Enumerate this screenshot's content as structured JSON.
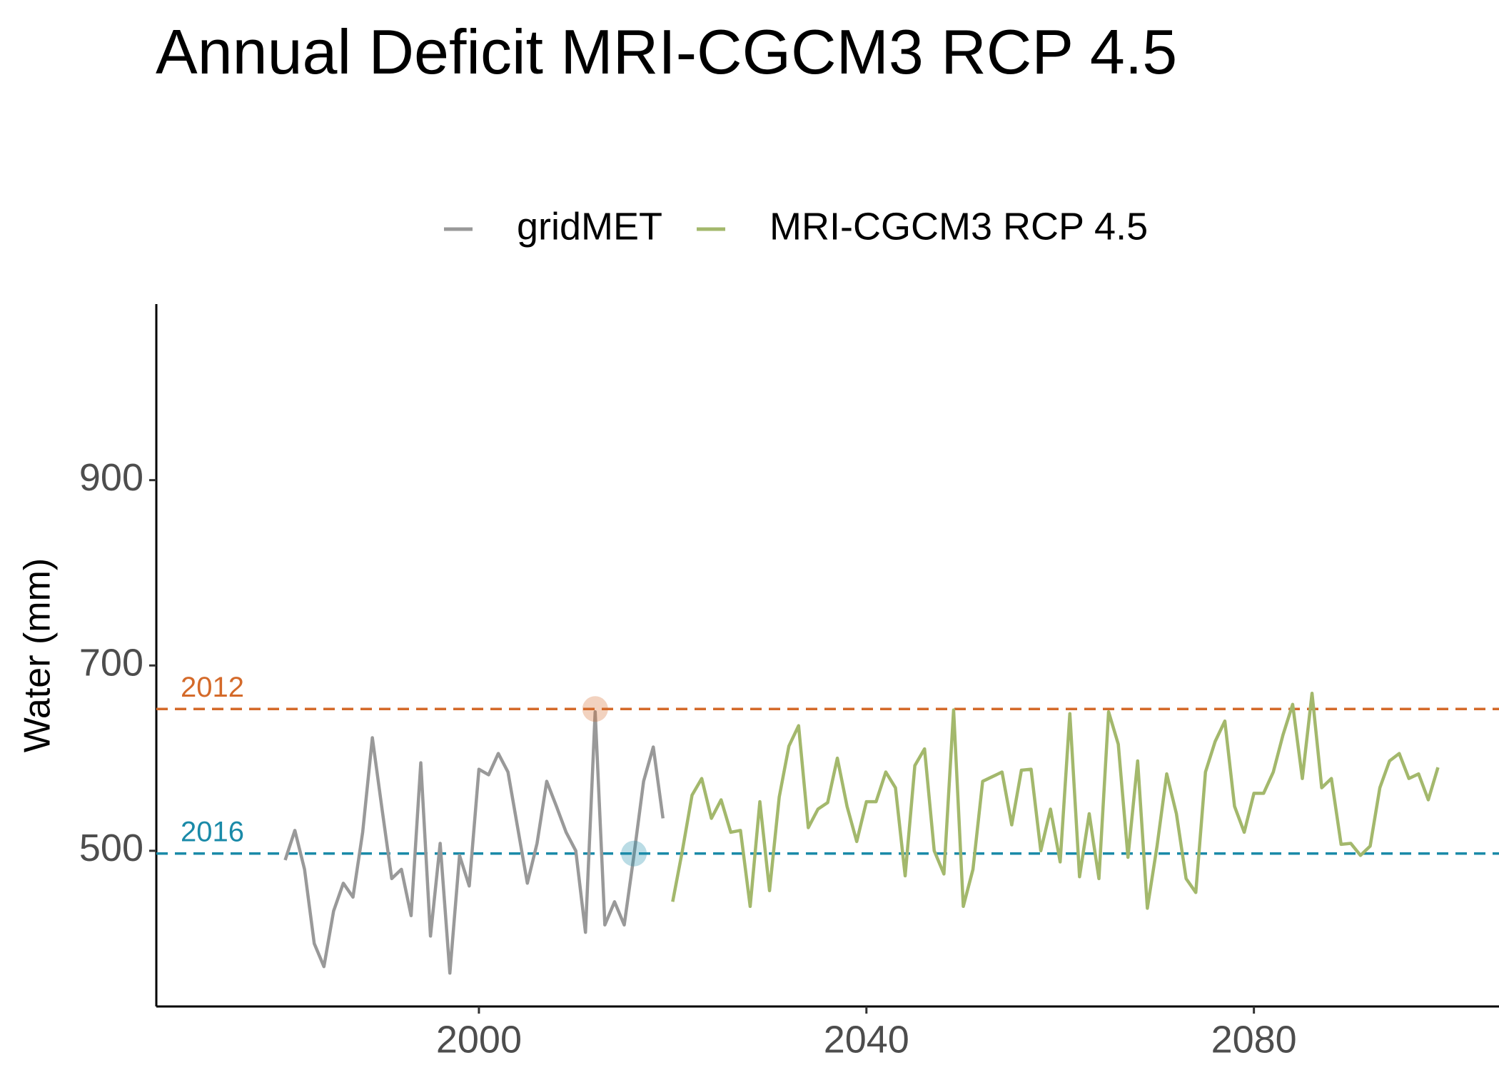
{
  "chart_data": {
    "type": "line",
    "title": "Annual Deficit MRI-CGCM3 RCP 4.5",
    "y_label": "Water (mm)",
    "x": [
      1980,
      1981,
      1982,
      1983,
      1984,
      1985,
      1986,
      1987,
      1988,
      1989,
      1990,
      1991,
      1992,
      1993,
      1994,
      1995,
      1996,
      1997,
      1998,
      1999,
      2000,
      2001,
      2002,
      2003,
      2004,
      2005,
      2006,
      2007,
      2008,
      2009,
      2010,
      2011,
      2012,
      2013,
      2014,
      2015,
      2016,
      2017,
      2018,
      2019,
      2020,
      2021,
      2022,
      2023,
      2024,
      2025,
      2026,
      2027,
      2028,
      2029,
      2030,
      2031,
      2032,
      2033,
      2034,
      2035,
      2036,
      2037,
      2038,
      2039,
      2040,
      2041,
      2042,
      2043,
      2044,
      2045,
      2046,
      2047,
      2048,
      2049,
      2050,
      2051,
      2052,
      2053,
      2054,
      2055,
      2056,
      2057,
      2058,
      2059,
      2060,
      2061,
      2062,
      2063,
      2064,
      2065,
      2066,
      2067,
      2068,
      2069,
      2070,
      2071,
      2072,
      2073,
      2074,
      2075,
      2076,
      2077,
      2078,
      2079,
      2080,
      2081,
      2082,
      2083,
      2084,
      2085,
      2086,
      2087,
      2088,
      2089,
      2090,
      2091,
      2092,
      2093,
      2094,
      2095,
      2096,
      2097,
      2098,
      2099
    ],
    "series": [
      {
        "name": "gridMET",
        "color": "#999999",
        "values": [
          490,
          522,
          480,
          400,
          375,
          435,
          465,
          450,
          520,
          622,
          545,
          470,
          480,
          430,
          595,
          408,
          508,
          368,
          495,
          462,
          588,
          582,
          605,
          585,
          525,
          465,
          508,
          575,
          548,
          520,
          500,
          412,
          650,
          420,
          445,
          420,
          495,
          575,
          612,
          535,
          null,
          null,
          null,
          null,
          null,
          null,
          null,
          null,
          null,
          null,
          null,
          null,
          null,
          null,
          null,
          null,
          null,
          null,
          null,
          null,
          null,
          null,
          null,
          null,
          null,
          null,
          null,
          null,
          null,
          null,
          null,
          null,
          null,
          null,
          null,
          null,
          null,
          null,
          null,
          null,
          null,
          null,
          null,
          null,
          null,
          null,
          null,
          null,
          null,
          null,
          null,
          null,
          null,
          null,
          null,
          null,
          null,
          null,
          null,
          null,
          null,
          null,
          null,
          null,
          null,
          null,
          null,
          null,
          null,
          null,
          null,
          null,
          null,
          null,
          null,
          null,
          null,
          null,
          null,
          null
        ]
      },
      {
        "name": "MRI-CGCM3 RCP 4.5",
        "color": "#a3b86c",
        "values": [
          null,
          null,
          null,
          null,
          null,
          null,
          null,
          null,
          null,
          null,
          null,
          null,
          null,
          null,
          null,
          null,
          null,
          null,
          null,
          null,
          null,
          null,
          null,
          null,
          null,
          null,
          null,
          null,
          null,
          null,
          null,
          null,
          null,
          null,
          null,
          null,
          null,
          null,
          null,
          null,
          445,
          500,
          560,
          578,
          535,
          555,
          520,
          522,
          440,
          553,
          457,
          558,
          613,
          635,
          525,
          545,
          552,
          600,
          548,
          510,
          553,
          553,
          585,
          568,
          473,
          592,
          610,
          500,
          475,
          652,
          440,
          480,
          575,
          580,
          585,
          528,
          587,
          588,
          500,
          545,
          488,
          648,
          472,
          540,
          470,
          650,
          615,
          493,
          597,
          438,
          505,
          583,
          540,
          470,
          455,
          585,
          618,
          640,
          548,
          520,
          562,
          562,
          585,
          625,
          658,
          578,
          670,
          568,
          578,
          507,
          508,
          495,
          505,
          568,
          597,
          605,
          578,
          583,
          555,
          590
        ]
      }
    ],
    "reference_lines": [
      {
        "label": "2012",
        "x": 2012,
        "value": 653,
        "color": "#d46a2a"
      },
      {
        "label": "2016",
        "x": 2016,
        "value": 497,
        "color": "#1a8aa8"
      }
    ],
    "xlim": [
      1966.7,
      2105.3
    ],
    "ylim": [
      332,
      1090
    ],
    "xticks": [
      2000,
      2040,
      2080
    ],
    "yticks": [
      500,
      700,
      900
    ],
    "legend": "top",
    "grid": false
  }
}
